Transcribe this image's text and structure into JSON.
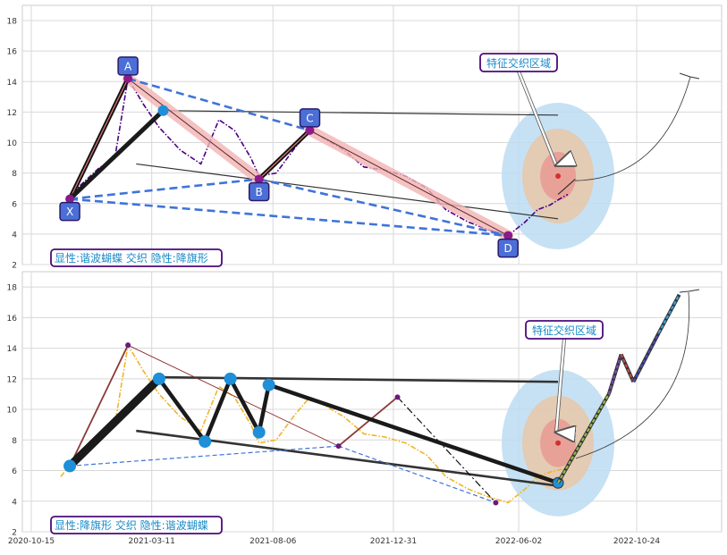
{
  "chart_data": [
    {
      "type": "line",
      "ylim": [
        2,
        19
      ],
      "yticks": [
        2,
        4,
        6,
        8,
        10,
        12,
        14,
        16,
        18
      ],
      "grid": true,
      "legend_box": {
        "text": "显性:谐波蝴蝶 交织 隐性:降旗形",
        "placement": "bottom-left"
      },
      "callout": {
        "text": "特征交织区域"
      },
      "pattern_points": [
        {
          "label": "X",
          "x": "2020-12-01",
          "y": 6.3
        },
        {
          "label": "A",
          "x": "2021-02-10",
          "y": 14.2
        },
        {
          "label": "B",
          "x": "2021-07-20",
          "y": 7.6
        },
        {
          "label": "C",
          "x": "2021-09-20",
          "y": 10.8
        },
        {
          "label": "D",
          "x": "2022-05-20",
          "y": 3.9
        }
      ],
      "flag_pivots": [
        {
          "x": "2020-12-01",
          "y": 6.3
        },
        {
          "x": "2021-03-25",
          "y": 12.1
        }
      ],
      "series": [
        {
          "color": "#4b0082",
          "style": "dash-dot",
          "x": [
            "2020-11-20",
            "2020-12-10",
            "2021-01-05",
            "2021-01-25",
            "2021-02-10",
            "2021-03-01",
            "2021-03-20",
            "2021-04-15",
            "2021-05-10",
            "2021-06-01",
            "2021-06-20",
            "2021-07-10",
            "2021-07-20",
            "2021-08-10",
            "2021-09-01",
            "2021-09-20",
            "2021-10-10",
            "2021-11-01",
            "2021-11-25",
            "2021-12-20",
            "2022-01-15",
            "2022-02-10",
            "2022-03-05",
            "2022-04-01",
            "2022-04-25",
            "2022-05-20",
            "2022-06-10",
            "2022-06-25",
            "2022-07-10",
            "2022-07-25",
            "2022-08-01"
          ],
          "y": [
            5.6,
            7.0,
            8.3,
            9.0,
            14.2,
            12.5,
            11.0,
            9.5,
            8.6,
            11.5,
            10.8,
            9.0,
            7.8,
            8.0,
            9.6,
            10.8,
            10.2,
            9.5,
            8.4,
            8.2,
            7.8,
            7.0,
            5.6,
            4.8,
            4.3,
            3.9,
            4.8,
            5.6,
            5.9,
            6.4,
            6.6
          ]
        }
      ],
      "reference_lines": [
        {
          "x": [
            "2021-03-20",
            "2022-07-20"
          ],
          "y": [
            12.1,
            11.8
          ]
        },
        {
          "x": [
            "2021-02-20",
            "2022-07-20"
          ],
          "y": [
            8.6,
            5.0
          ]
        },
        {
          "x": [
            "2022-07-20",
            "2022-08-10"
          ],
          "y": [
            6.6,
            7.6
          ]
        }
      ]
    },
    {
      "type": "line",
      "ylim": [
        2,
        19
      ],
      "yticks": [
        2,
        4,
        6,
        8,
        10,
        12,
        14,
        16,
        18
      ],
      "xticks": [
        "2020-10-15",
        "2021-03-11",
        "2021-08-06",
        "2021-12-31",
        "2022-06-02",
        "2022-10-24"
      ],
      "grid": true,
      "legend_box": {
        "text": "显性:降旗形 交织 隐性:谐波蝴蝶",
        "placement": "bottom-left"
      },
      "callout": {
        "text": "特征交织区域"
      },
      "flag_pivots": [
        {
          "x": "2020-12-01",
          "y": 6.3
        },
        {
          "x": "2021-03-20",
          "y": 12.0
        },
        {
          "x": "2021-05-15",
          "y": 7.9
        },
        {
          "x": "2021-06-15",
          "y": 12.0
        },
        {
          "x": "2021-07-20",
          "y": 8.5
        },
        {
          "x": "2021-08-01",
          "y": 11.6
        },
        {
          "x": "2022-07-20",
          "y": 5.2
        }
      ],
      "harmonic_points": [
        {
          "x": "2020-12-01",
          "y": 6.3
        },
        {
          "x": "2021-02-10",
          "y": 14.2
        },
        {
          "x": "2021-10-25",
          "y": 7.6
        },
        {
          "x": "2022-01-05",
          "y": 10.8
        },
        {
          "x": "2022-05-05",
          "y": 3.9
        }
      ],
      "projection": {
        "x": [
          "2022-07-20",
          "2022-09-20",
          "2022-10-05",
          "2022-10-20",
          "2022-11-20",
          "2022-12-15"
        ],
        "y": [
          5.2,
          11.0,
          13.6,
          11.8,
          15.0,
          17.5
        ]
      },
      "series": [
        {
          "color": "#f0b429",
          "style": "dash-dot",
          "x": [
            "2020-11-20",
            "2020-12-10",
            "2021-01-05",
            "2021-01-25",
            "2021-02-10",
            "2021-03-01",
            "2021-03-20",
            "2021-04-15",
            "2021-05-10",
            "2021-06-01",
            "2021-06-20",
            "2021-07-10",
            "2021-07-20",
            "2021-08-10",
            "2021-09-01",
            "2021-09-20",
            "2021-10-10",
            "2021-11-01",
            "2021-11-25",
            "2021-12-20",
            "2022-01-15",
            "2022-02-10",
            "2022-03-05",
            "2022-04-01",
            "2022-04-25",
            "2022-05-20",
            "2022-06-10",
            "2022-06-25",
            "2022-07-10",
            "2022-07-25"
          ],
          "y": [
            5.6,
            7.0,
            8.3,
            9.0,
            14.2,
            12.5,
            11.0,
            9.5,
            8.6,
            11.5,
            10.8,
            9.0,
            7.8,
            8.0,
            9.6,
            10.8,
            10.2,
            9.5,
            8.4,
            8.2,
            7.8,
            7.0,
            5.6,
            4.8,
            4.3,
            3.9,
            4.8,
            5.6,
            5.9,
            6.1
          ]
        }
      ],
      "reference_lines": [
        {
          "x": [
            "2021-03-20",
            "2022-07-20"
          ],
          "y": [
            12.1,
            11.8
          ]
        },
        {
          "x": [
            "2021-02-20",
            "2022-07-20"
          ],
          "y": [
            8.6,
            5.0
          ]
        }
      ]
    }
  ]
}
